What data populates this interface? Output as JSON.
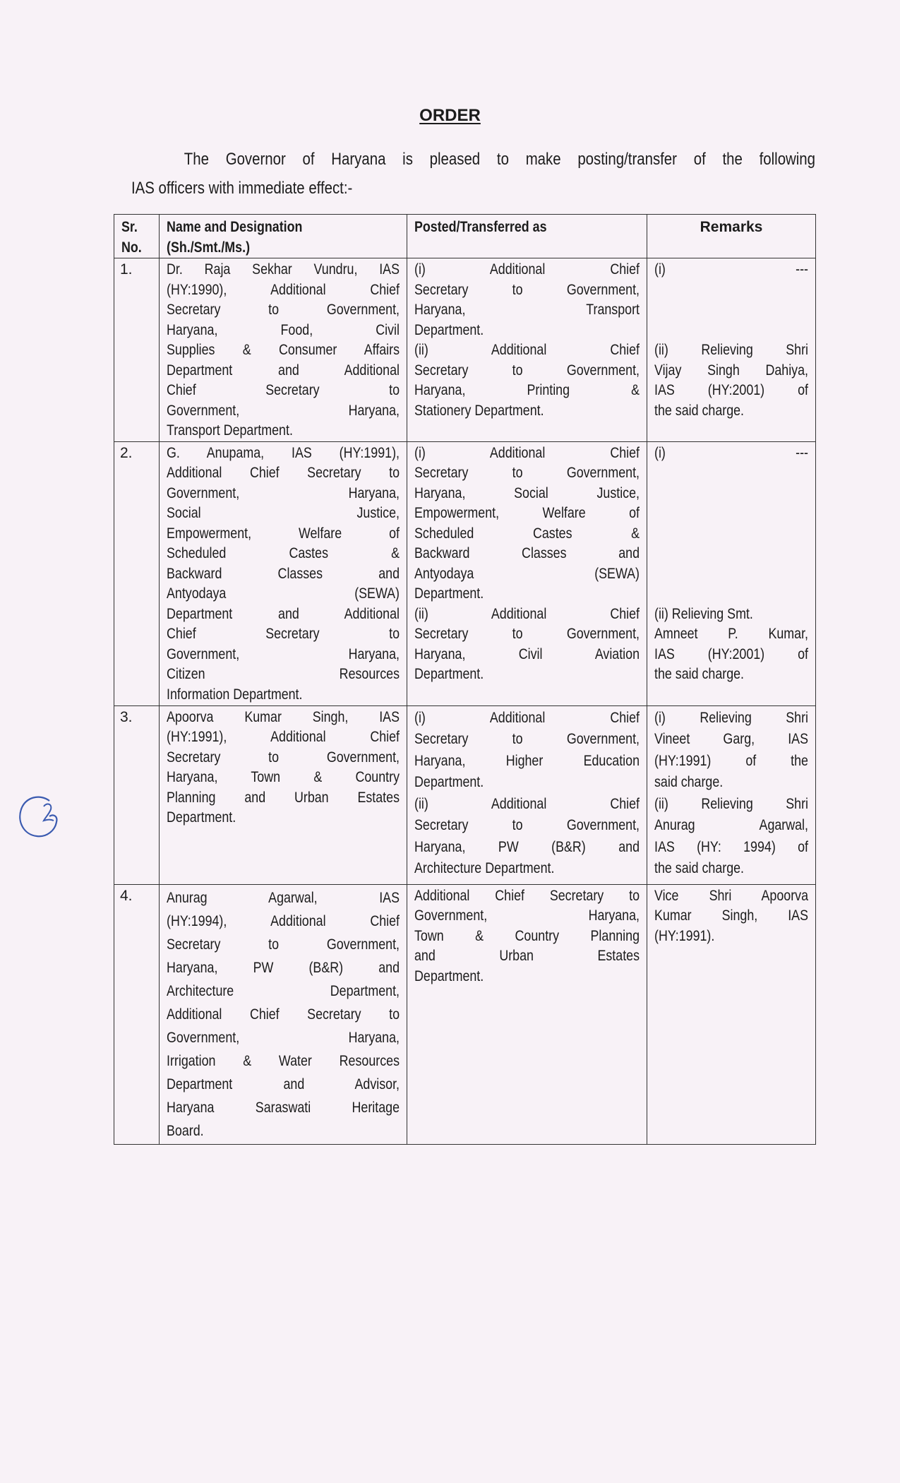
{
  "document": {
    "title": "ORDER",
    "intro_lines": [
      "The Governor of Haryana is pleased to make posting/transfer of the following",
      "IAS officers with immediate effect:-"
    ],
    "handwritten_mark": "2",
    "colors": {
      "paper": "#f8f2f7",
      "ink": "#1c1c1c",
      "pen": "#3b5bb0"
    }
  },
  "table": {
    "headers": [
      [
        "Sr.",
        "No."
      ],
      [
        "Name and Designation",
        "(Sh./Smt./Ms.)"
      ],
      [
        "Posted/Transferred as"
      ],
      [
        "Remarks"
      ]
    ],
    "rows": [
      {
        "sr": "1.",
        "name": [
          "Dr. Raja Sekhar Vundru, IAS",
          "(HY:1990), Additional Chief",
          "Secretary to Government,",
          "Haryana, Food, Civil",
          "Supplies & Consumer Affairs",
          "Department and Additional",
          "Chief Secretary to",
          "Government, Haryana,",
          "Transport Department."
        ],
        "posted": [
          "(i) Additional Chief",
          "Secretary to Government,",
          "Haryana, Transport",
          "Department.",
          "(ii) Additional Chief",
          "Secretary to Government,",
          "Haryana, Printing &",
          "Stationery Department."
        ],
        "remarks": [
          "(i) ---",
          "",
          "",
          "",
          "(ii) Relieving Shri",
          "Vijay Singh Dahiya,",
          "IAS (HY:2001) of",
          "the said charge."
        ]
      },
      {
        "sr": "2.",
        "name": [
          "G. Anupama, IAS (HY:1991),",
          "Additional Chief Secretary to",
          "Government, Haryana,",
          "Social Justice,",
          "Empowerment, Welfare of",
          "Scheduled Castes &",
          "Backward Classes and",
          "Antyodaya (SEWA)",
          "Department and Additional",
          "Chief Secretary to",
          "Government, Haryana,",
          "Citizen Resources",
          "Information Department."
        ],
        "posted": [
          "(i) Additional Chief",
          "Secretary to Government,",
          "Haryana, Social Justice,",
          "Empowerment, Welfare of",
          "Scheduled Castes &",
          "Backward Classes and",
          "Antyodaya (SEWA)",
          "Department.",
          "(ii) Additional Chief",
          "Secretary to Government,",
          "Haryana, Civil Aviation",
          "Department."
        ],
        "remarks": [
          "(i) ---",
          "",
          "",
          "",
          "",
          "",
          "",
          "",
          "(ii) Relieving Smt.",
          "Amneet P. Kumar,",
          "IAS (HY:2001) of",
          "the said charge."
        ]
      },
      {
        "sr": "3.",
        "name": [
          "Apoorva Kumar Singh, IAS",
          "(HY:1991), Additional Chief",
          "Secretary to Government,",
          "Haryana, Town & Country",
          "Planning and Urban Estates",
          "Department."
        ],
        "posted": [
          "(i) Additional Chief",
          "Secretary to Government,",
          "Haryana, Higher Education",
          "Department.",
          "(ii) Additional Chief",
          "Secretary to Government,",
          "Haryana, PW (B&R) and",
          "Architecture Department."
        ],
        "remarks": [
          "(i) Relieving Shri",
          "Vineet Garg, IAS",
          "(HY:1991) of the",
          "said charge.",
          "(ii) Relieving Shri",
          "Anurag Agarwal,",
          "IAS (HY: 1994) of",
          "the said charge."
        ]
      },
      {
        "sr": "4.",
        "name": [
          "Anurag Agarwal, IAS",
          "(HY:1994), Additional Chief",
          "Secretary to Government,",
          "Haryana, PW (B&R) and",
          "Architecture Department,",
          "Additional Chief Secretary to",
          "Government, Haryana,",
          "Irrigation & Water Resources",
          "Department and Advisor,",
          "Haryana Saraswati Heritage",
          "Board."
        ],
        "posted": [
          "Additional Chief Secretary to",
          "Government, Haryana,",
          "Town & Country Planning",
          "and Urban Estates",
          "Department."
        ],
        "remarks": [
          "Vice Shri Apoorva",
          "Kumar Singh, IAS",
          "(HY:1991)."
        ]
      }
    ]
  }
}
